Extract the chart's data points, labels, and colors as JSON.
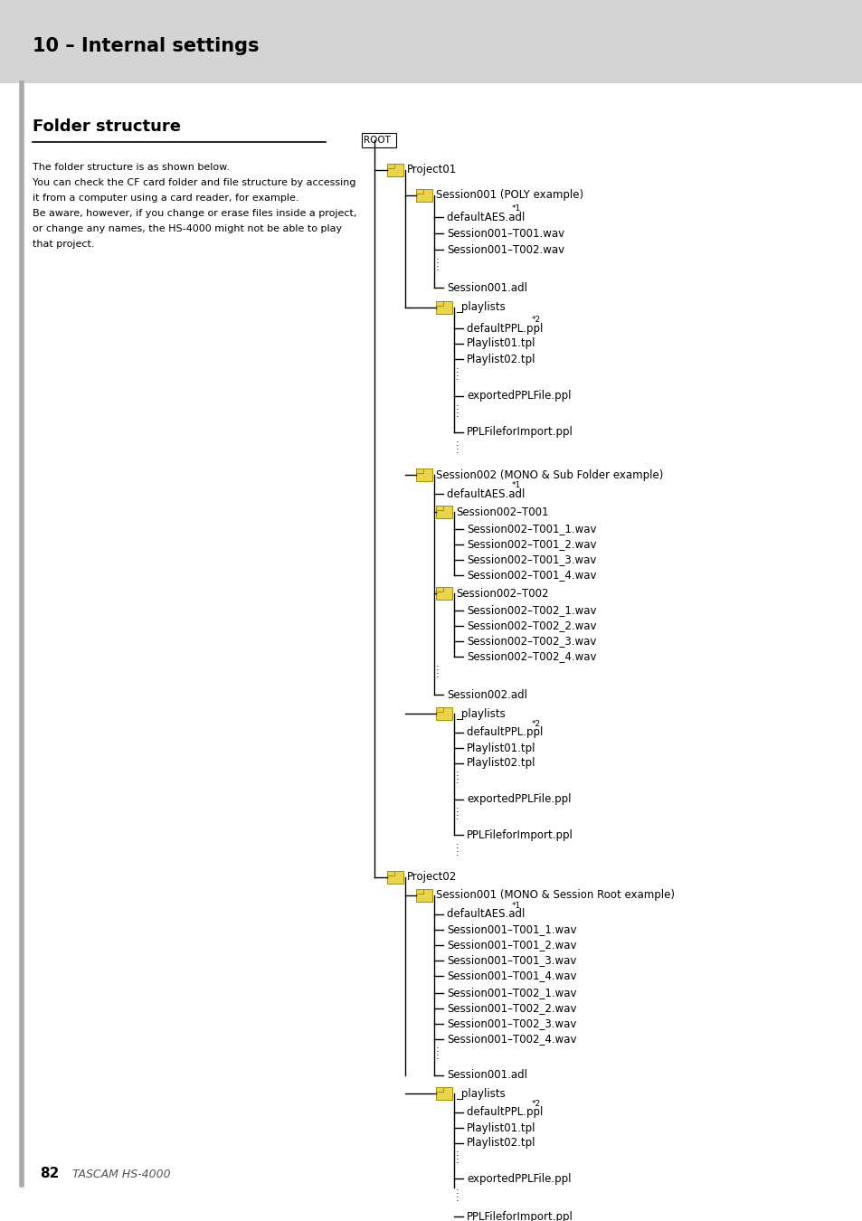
{
  "page_bg": "#ffffff",
  "header_bg": "#d4d4d4",
  "header_text": "10 – Internal settings",
  "section_title": "Folder structure",
  "body_text_lines": [
    "The folder structure is as shown below.",
    "You can check the CF card folder and file structure by accessing",
    "it from a computer using a card reader, for example.",
    "Be aware, however, if you change or erase files inside a project,",
    "or change any names, the HS-4000 might not be able to play",
    "that project."
  ],
  "footer_page": "82",
  "footer_model": "TASCAM HS-4000",
  "folder_color": "#e8d44d",
  "folder_edge": "#a89000",
  "line_color": "#000000",
  "text_color": "#000000"
}
